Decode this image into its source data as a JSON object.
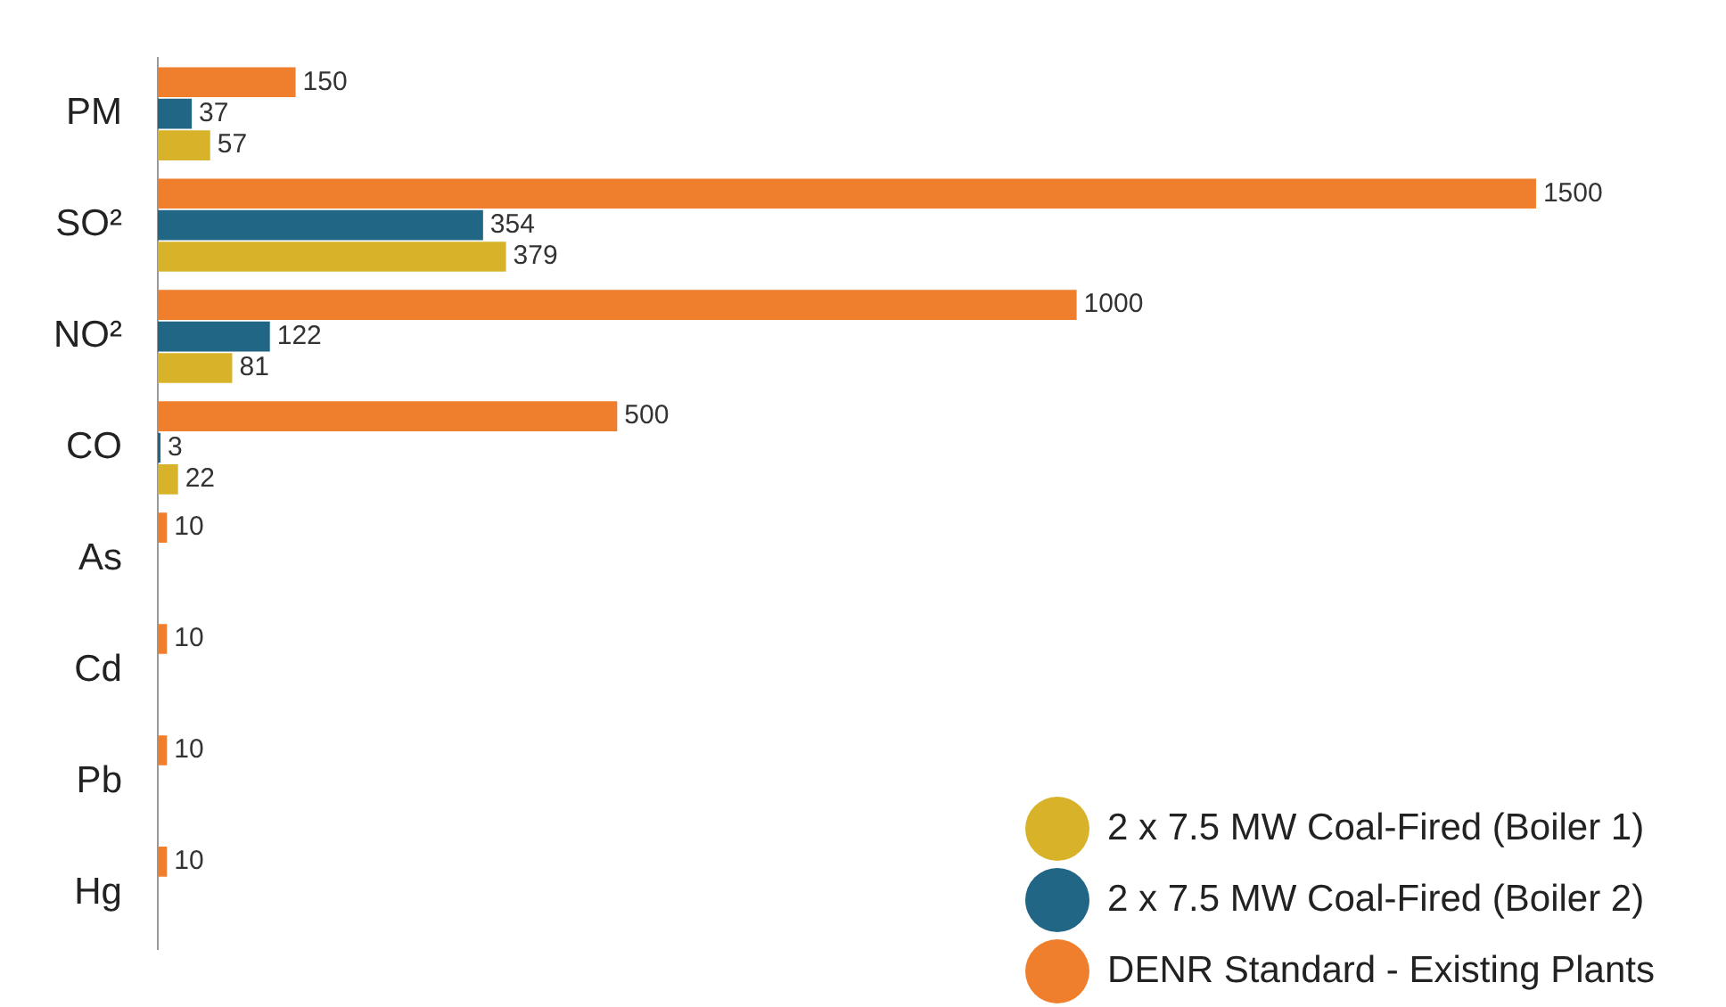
{
  "chart_data": {
    "type": "bar",
    "orientation": "horizontal",
    "categories": [
      "PM",
      "SO²",
      "NO²",
      "CO",
      "As",
      "Cd",
      "Pb",
      "Hg"
    ],
    "series": [
      {
        "name": "DENR Standard - Existing Plants",
        "color": "#f07f2d",
        "values": [
          150,
          1500,
          1000,
          500,
          10,
          10,
          10,
          10
        ]
      },
      {
        "name": "2 x 7.5 MW Coal-Fired (Boiler 2)",
        "color": "#216685",
        "values": [
          37,
          354,
          122,
          3,
          null,
          null,
          null,
          null
        ]
      },
      {
        "name": "2 x 7.5 MW Coal-Fired (Boiler 1)",
        "color": "#d8b32a",
        "values": [
          57,
          379,
          81,
          22,
          null,
          null,
          null,
          null
        ]
      }
    ],
    "data_labels": true,
    "tick_labels": "y",
    "grid": false,
    "legend": "bottom right"
  }
}
